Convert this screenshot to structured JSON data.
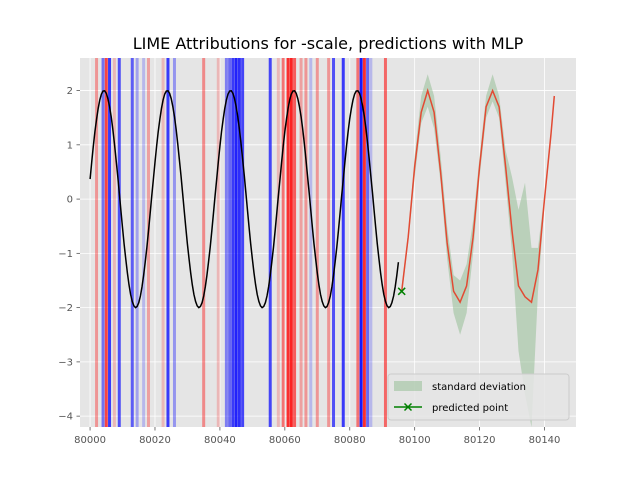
{
  "chart_data": {
    "type": "line",
    "title": "LIME Attributions for -scale, predictions with MLP",
    "xlabel": "",
    "ylabel": "",
    "xlim": [
      79996.9,
      80149.7
    ],
    "ylim": [
      -4.2,
      2.6
    ],
    "xticks": [
      80000,
      80020,
      80040,
      80060,
      80080,
      80100,
      80120,
      80140
    ],
    "yticks": [
      -4,
      -3,
      -2,
      -1,
      0,
      1,
      2
    ],
    "xtick_labels": [
      "80000",
      "80020",
      "80040",
      "80060",
      "80080",
      "80100",
      "80120",
      "80140"
    ],
    "ytick_labels": [
      "−4",
      "−3",
      "−2",
      "−1",
      "0",
      "1",
      "2"
    ],
    "grid": true,
    "legend_position": "bottom-right",
    "colors": {
      "background": "#e5e5e5",
      "grid": "#ffffff",
      "history": "#000000",
      "prediction": "#e24a33",
      "std_fill": "#8fbc8f",
      "predicted_point": "#008000",
      "positive_attr": "#ff0000",
      "negative_attr": "#0000ff"
    },
    "history": {
      "x_start": 80000,
      "x_end": 80095,
      "step": 0.5,
      "amplitude": 2.0,
      "period": 19.5,
      "peak_x": 80004.3
    },
    "prediction": {
      "x": [
        80096,
        80098,
        80100,
        80102,
        80104,
        80106,
        80108,
        80110,
        80112,
        80114,
        80116,
        80118,
        80120,
        80122,
        80124,
        80126,
        80128,
        80130,
        80132,
        80134,
        80136,
        80138,
        80140,
        80142,
        80143
      ],
      "y": [
        -1.7,
        -0.7,
        0.6,
        1.6,
        2.0,
        1.6,
        0.5,
        -0.8,
        -1.7,
        -1.9,
        -1.6,
        -0.7,
        0.6,
        1.7,
        2.0,
        1.7,
        0.6,
        -0.6,
        -1.6,
        -1.8,
        -1.9,
        -1.3,
        0.0,
        1.2,
        1.9
      ],
      "std_lower": [
        -1.8,
        -0.8,
        0.4,
        1.4,
        1.7,
        1.3,
        0.3,
        -1.1,
        -2.1,
        -2.5,
        -2.1,
        -1.0,
        0.4,
        1.5,
        1.8,
        1.5,
        0.3,
        -1.0,
        -2.8,
        -3.6,
        -4.2,
        -1.7,
        -0.1,
        1.1,
        1.9
      ],
      "std_upper": [
        -1.6,
        -0.6,
        0.8,
        1.9,
        2.3,
        1.9,
        0.8,
        -0.5,
        -1.4,
        -1.5,
        -1.2,
        -0.4,
        0.8,
        1.9,
        2.3,
        1.9,
        0.9,
        0.4,
        -0.2,
        0.3,
        -0.9,
        -0.9,
        0.1,
        1.3,
        1.9
      ]
    },
    "predicted_point": {
      "x": 80096,
      "y": -1.7
    },
    "attributions": [
      {
        "x": 80002,
        "sign": "positive",
        "alpha": 0.35
      },
      {
        "x": 80004,
        "sign": "negative",
        "alpha": 0.5
      },
      {
        "x": 80005,
        "sign": "positive",
        "alpha": 0.7
      },
      {
        "x": 80006,
        "sign": "negative",
        "alpha": 0.75
      },
      {
        "x": 80007.5,
        "sign": "positive",
        "alpha": 0.2
      },
      {
        "x": 80009,
        "sign": "negative",
        "alpha": 0.65
      },
      {
        "x": 80013,
        "sign": "negative",
        "alpha": 0.6
      },
      {
        "x": 80014.5,
        "sign": "negative",
        "alpha": 0.3
      },
      {
        "x": 80016.5,
        "sign": "negative",
        "alpha": 0.2
      },
      {
        "x": 80018,
        "sign": "positive",
        "alpha": 0.3
      },
      {
        "x": 80022.5,
        "sign": "positive",
        "alpha": 0.2
      },
      {
        "x": 80024,
        "sign": "negative",
        "alpha": 0.75
      },
      {
        "x": 80026,
        "sign": "negative",
        "alpha": 0.35
      },
      {
        "x": 80035,
        "sign": "positive",
        "alpha": 0.4
      },
      {
        "x": 80039.5,
        "sign": "positive",
        "alpha": 0.2
      },
      {
        "x": 80042,
        "sign": "negative",
        "alpha": 0.45
      },
      {
        "x": 80043,
        "sign": "negative",
        "alpha": 0.55
      },
      {
        "x": 80044,
        "sign": "negative",
        "alpha": 0.75
      },
      {
        "x": 80045,
        "sign": "negative",
        "alpha": 0.85
      },
      {
        "x": 80046,
        "sign": "negative",
        "alpha": 0.8
      },
      {
        "x": 80047,
        "sign": "negative",
        "alpha": 0.7
      },
      {
        "x": 80055.5,
        "sign": "negative",
        "alpha": 0.7
      },
      {
        "x": 80058,
        "sign": "positive",
        "alpha": 0.2
      },
      {
        "x": 80059.5,
        "sign": "positive",
        "alpha": 0.5
      },
      {
        "x": 80061,
        "sign": "positive",
        "alpha": 0.8
      },
      {
        "x": 80062,
        "sign": "positive",
        "alpha": 0.85
      },
      {
        "x": 80063,
        "sign": "positive",
        "alpha": 0.6
      },
      {
        "x": 80065,
        "sign": "positive",
        "alpha": 0.3
      },
      {
        "x": 80066.5,
        "sign": "positive",
        "alpha": 0.35
      },
      {
        "x": 80068,
        "sign": "negative",
        "alpha": 0.2
      },
      {
        "x": 80070,
        "sign": "positive",
        "alpha": 0.35
      },
      {
        "x": 80073.5,
        "sign": "positive",
        "alpha": 0.35
      },
      {
        "x": 80075,
        "sign": "negative",
        "alpha": 0.65
      },
      {
        "x": 80078,
        "sign": "negative",
        "alpha": 0.75
      },
      {
        "x": 80082.5,
        "sign": "positive",
        "alpha": 0.5
      },
      {
        "x": 80083.5,
        "sign": "negative",
        "alpha": 0.9
      },
      {
        "x": 80084.5,
        "sign": "positive",
        "alpha": 0.8
      },
      {
        "x": 80085.5,
        "sign": "negative",
        "alpha": 0.55
      },
      {
        "x": 80086.5,
        "sign": "negative",
        "alpha": 0.2
      },
      {
        "x": 80091,
        "sign": "positive",
        "alpha": 0.55
      }
    ],
    "legend": [
      {
        "label": "standard deviation",
        "kind": "patch"
      },
      {
        "label": "predicted point",
        "kind": "line-marker"
      }
    ]
  }
}
